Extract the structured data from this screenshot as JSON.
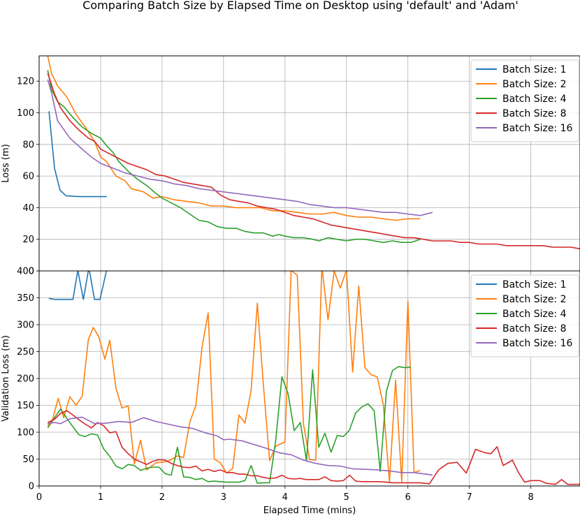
{
  "figure": {
    "title": "Comparing Batch Size by Elapsed Time on Desktop using 'default' and 'Adam'"
  },
  "colors": {
    "Batch Size: 1": "#1f77b4",
    "Batch Size: 2": "#ff7f0e",
    "Batch Size: 4": "#2ca02c",
    "Batch Size: 8": "#d62728",
    "Batch Size: 16": "#9467bd",
    "grid": "#b0b0b0"
  },
  "chart_data": [
    {
      "type": "line",
      "title": "Comparing Batch Size by Elapsed Time on Desktop using 'default' and 'Adam'",
      "xlabel": "",
      "ylabel": "Loss (m)",
      "xlim": [
        0,
        8.8
      ],
      "ylim": [
        0,
        136
      ],
      "xticks": [
        0,
        1,
        2,
        3,
        4,
        5,
        6,
        7,
        8
      ],
      "yticks": [
        0,
        20,
        40,
        60,
        80,
        100,
        120
      ],
      "grid": true,
      "legend_position": "top-right",
      "series": [
        {
          "name": "Batch Size: 1",
          "x": [
            0.16,
            0.25,
            0.34,
            0.44,
            0.55,
            0.66,
            0.77,
            0.88,
            0.99,
            1.1
          ],
          "y": [
            101,
            65,
            51,
            47.5,
            47.2,
            47,
            47,
            47,
            47,
            47
          ]
        },
        {
          "name": "Batch Size: 2",
          "x": [
            0.14,
            0.2,
            0.3,
            0.45,
            0.6,
            0.75,
            0.9,
            1.0,
            1.1,
            1.25,
            1.4,
            1.5,
            1.7,
            1.85,
            2.0,
            2.2,
            2.4,
            2.6,
            2.8,
            3.0,
            3.2,
            3.4,
            3.6,
            3.8,
            4.0,
            4.2,
            4.4,
            4.6,
            4.8,
            5.0,
            5.2,
            5.4,
            5.6,
            5.8,
            6.0,
            6.2
          ],
          "y": [
            136,
            125,
            117,
            110,
            99,
            91,
            82,
            72,
            69,
            60,
            57,
            52,
            50,
            46,
            47,
            45,
            44,
            43,
            41,
            41,
            40,
            40,
            40,
            38,
            38,
            37,
            36,
            36,
            37,
            35,
            34,
            34,
            33,
            32,
            33,
            33
          ]
        },
        {
          "name": "Batch Size: 4",
          "x": [
            0.14,
            0.2,
            0.3,
            0.4,
            0.55,
            0.7,
            0.85,
            1.0,
            1.1,
            1.2,
            1.3,
            1.45,
            1.6,
            1.75,
            1.9,
            2.0,
            2.15,
            2.3,
            2.45,
            2.6,
            2.75,
            2.9,
            3.05,
            3.2,
            3.35,
            3.5,
            3.65,
            3.8,
            3.9,
            4.0,
            4.15,
            4.3,
            4.45,
            4.55,
            4.7,
            4.85,
            5.0,
            5.15,
            5.3,
            5.45,
            5.6,
            5.75,
            5.9,
            6.05,
            6.2
          ],
          "y": [
            127,
            115,
            107,
            104,
            97,
            91,
            87,
            84,
            79,
            75,
            69,
            63,
            58,
            54,
            49,
            46,
            43,
            40,
            36,
            32,
            31,
            28,
            27,
            27,
            25,
            24,
            24,
            22,
            23,
            22,
            21,
            21,
            20,
            19,
            21,
            20,
            19,
            20,
            20,
            19,
            18,
            19,
            18,
            18,
            20
          ]
        },
        {
          "name": "Batch Size: 8",
          "x": [
            0.14,
            0.25,
            0.35,
            0.5,
            0.65,
            0.8,
            0.9,
            1.0,
            1.15,
            1.3,
            1.45,
            1.6,
            1.75,
            1.9,
            2.05,
            2.2,
            2.35,
            2.5,
            2.65,
            2.8,
            2.95,
            3.1,
            3.25,
            3.4,
            3.55,
            3.7,
            3.85,
            4.0,
            4.15,
            4.3,
            4.45,
            4.6,
            4.75,
            4.9,
            5.05,
            5.2,
            5.35,
            5.5,
            5.65,
            5.8,
            5.95,
            6.1,
            6.25,
            6.4,
            6.55,
            6.7,
            6.85,
            7.0,
            7.15,
            7.3,
            7.45,
            7.6,
            7.75,
            7.9,
            8.05,
            8.2,
            8.35,
            8.5,
            8.65,
            8.8
          ],
          "y": [
            125,
            112,
            103,
            95,
            89,
            84,
            82,
            77,
            74,
            71,
            68,
            66,
            64,
            61,
            60,
            58,
            56,
            55,
            54,
            53,
            48,
            45,
            44,
            43,
            41,
            40,
            39,
            37,
            35,
            34,
            33,
            31,
            29,
            28,
            27,
            26,
            25,
            24,
            23,
            22,
            21,
            21,
            20,
            19,
            19,
            19,
            18,
            18,
            17,
            17,
            17,
            16,
            16,
            16,
            16,
            16,
            15,
            15,
            15,
            14
          ]
        },
        {
          "name": "Batch Size: 16",
          "x": [
            0.14,
            0.2,
            0.3,
            0.5,
            0.7,
            0.85,
            1.0,
            1.2,
            1.4,
            1.6,
            1.8,
            2.0,
            2.2,
            2.4,
            2.6,
            2.8,
            3.0,
            3.2,
            3.4,
            3.6,
            3.8,
            4.0,
            4.2,
            4.4,
            4.6,
            4.8,
            5.0,
            5.2,
            5.4,
            5.6,
            5.8,
            6.0,
            6.2,
            6.4
          ],
          "y": [
            121,
            113,
            95,
            84,
            77,
            72,
            68,
            65,
            62,
            60,
            58,
            57,
            55,
            54,
            52,
            51,
            50,
            49,
            48,
            47,
            46,
            45,
            44,
            42,
            41,
            40,
            40,
            39,
            38,
            37,
            37,
            36,
            35,
            37
          ]
        }
      ]
    },
    {
      "type": "line",
      "title": "",
      "xlabel": "Elapsed Time (mins)",
      "ylabel": "Validation Loss (m)",
      "xlim": [
        0,
        8.8
      ],
      "ylim": [
        0,
        400
      ],
      "xticks": [
        0,
        1,
        2,
        3,
        4,
        5,
        6,
        7,
        8
      ],
      "yticks": [
        0,
        50,
        100,
        150,
        200,
        250,
        300,
        350,
        400
      ],
      "grid": true,
      "legend_position": "top-right",
      "series": [
        {
          "name": "Batch Size: 1",
          "x": [
            0.16,
            0.25,
            0.35,
            0.45,
            0.55,
            0.63,
            0.72,
            0.81,
            0.9,
            0.99,
            1.1
          ],
          "y": [
            349,
            347,
            347,
            347,
            347,
            401,
            347,
            406,
            347,
            347,
            403
          ]
        },
        {
          "name": "Batch Size: 2",
          "x": [
            0.14,
            0.22,
            0.31,
            0.4,
            0.5,
            0.6,
            0.7,
            0.8,
            0.88,
            0.97,
            1.07,
            1.15,
            1.25,
            1.35,
            1.45,
            1.55,
            1.65,
            1.75,
            1.9,
            2.05,
            2.15,
            2.25,
            2.35,
            2.45,
            2.55,
            2.65,
            2.75,
            2.85,
            2.95,
            3.05,
            3.15,
            3.25,
            3.35,
            3.45,
            3.55,
            3.65,
            3.75,
            3.85,
            4.0,
            4.1,
            4.2,
            4.3,
            4.4,
            4.5,
            4.6,
            4.7,
            4.8,
            4.9,
            5.0,
            5.1,
            5.2,
            5.3,
            5.4,
            5.5,
            5.6,
            5.7,
            5.8,
            5.9,
            6.0,
            6.1,
            6.2
          ],
          "y": [
            112,
            124,
            163,
            127,
            166,
            150,
            167,
            272,
            295,
            278,
            236,
            271,
            182,
            145,
            149,
            41,
            85,
            30,
            43,
            45,
            49,
            56,
            53,
            118,
            150,
            258,
            322,
            50,
            43,
            24,
            33,
            132,
            117,
            178,
            340,
            187,
            47,
            74,
            82,
            401,
            392,
            116,
            49,
            48,
            408,
            309,
            400,
            368,
            402,
            212,
            372,
            220,
            207,
            203,
            152,
            7,
            197,
            8,
            344,
            25,
            29
          ]
        },
        {
          "name": "Batch Size: 4",
          "x": [
            0.14,
            0.25,
            0.35,
            0.45,
            0.55,
            0.65,
            0.75,
            0.85,
            0.95,
            1.05,
            1.15,
            1.25,
            1.35,
            1.45,
            1.55,
            1.65,
            1.75,
            1.85,
            1.95,
            2.05,
            2.15,
            2.25,
            2.35,
            2.45,
            2.55,
            2.65,
            2.75,
            2.85,
            2.95,
            3.05,
            3.15,
            3.25,
            3.35,
            3.45,
            3.55,
            3.65,
            3.75,
            3.85,
            3.95,
            4.05,
            4.15,
            4.25,
            4.35,
            4.45,
            4.55,
            4.65,
            4.75,
            4.85,
            4.95,
            5.05,
            5.15,
            5.25,
            5.35,
            5.45,
            5.55,
            5.65,
            5.75,
            5.85,
            5.95,
            6.05
          ],
          "y": [
            108,
            127,
            143,
            126,
            110,
            95,
            92,
            97,
            95,
            69,
            55,
            37,
            32,
            40,
            38,
            29,
            33,
            35,
            35,
            23,
            20,
            72,
            17,
            16,
            12,
            14,
            8,
            9,
            8,
            7,
            7,
            7,
            10,
            38,
            5,
            6,
            6,
            85,
            203,
            172,
            103,
            118,
            47,
            216,
            72,
            98,
            63,
            94,
            92,
            104,
            136,
            147,
            153,
            140,
            27,
            176,
            215,
            222,
            220,
            221
          ]
        },
        {
          "name": "Batch Size: 8",
          "x": [
            0.14,
            0.25,
            0.35,
            0.45,
            0.55,
            0.65,
            0.75,
            0.85,
            0.95,
            1.05,
            1.15,
            1.25,
            1.35,
            1.45,
            1.55,
            1.65,
            1.75,
            1.85,
            1.95,
            2.05,
            2.15,
            2.25,
            2.35,
            2.45,
            2.55,
            2.65,
            2.75,
            2.85,
            2.95,
            3.05,
            3.15,
            3.25,
            3.35,
            3.45,
            3.55,
            3.65,
            3.75,
            3.85,
            3.95,
            4.05,
            4.15,
            4.25,
            4.35,
            4.45,
            4.55,
            4.65,
            4.75,
            4.85,
            4.95,
            5.05,
            5.15,
            5.25,
            5.35,
            5.45,
            5.55,
            5.65,
            5.75,
            5.85,
            5.95,
            6.05,
            6.2,
            6.35,
            6.5,
            6.65,
            6.8,
            6.95,
            7.1,
            7.25,
            7.35,
            7.45,
            7.55,
            7.7,
            7.8,
            7.9,
            8.0,
            8.15,
            8.25,
            8.4,
            8.5,
            8.6,
            8.75,
            8.8
          ],
          "y": [
            118,
            124,
            135,
            140,
            132,
            123,
            115,
            108,
            118,
            112,
            99,
            101,
            72,
            60,
            50,
            45,
            40,
            46,
            49,
            48,
            42,
            38,
            35,
            34,
            37,
            28,
            31,
            27,
            30,
            25,
            25,
            22,
            22,
            19,
            19,
            16,
            14,
            15,
            20,
            14,
            13,
            14,
            12,
            12,
            12,
            17,
            10,
            9,
            10,
            20,
            9,
            8,
            8,
            8,
            8,
            7,
            6,
            6,
            6,
            6,
            6,
            4,
            30,
            42,
            44,
            24,
            68,
            62,
            60,
            73,
            38,
            48,
            25,
            7,
            10,
            10,
            5,
            3,
            12,
            3,
            3,
            3
          ]
        },
        {
          "name": "Batch Size: 16",
          "x": [
            0.14,
            0.25,
            0.35,
            0.5,
            0.7,
            0.9,
            1.1,
            1.3,
            1.5,
            1.7,
            1.9,
            2.1,
            2.3,
            2.5,
            2.7,
            2.9,
            3.0,
            3.1,
            3.3,
            3.5,
            3.7,
            3.9,
            4.1,
            4.3,
            4.5,
            4.7,
            4.9,
            5.1,
            5.3,
            5.5,
            5.7,
            5.9,
            6.1,
            6.3,
            6.4
          ],
          "y": [
            116,
            118,
            116,
            125,
            128,
            116,
            117,
            120,
            118,
            127,
            120,
            115,
            110,
            107,
            99,
            93,
            86,
            87,
            84,
            77,
            70,
            62,
            58,
            48,
            42,
            38,
            37,
            32,
            31,
            30,
            28,
            25,
            25,
            22,
            20
          ]
        }
      ]
    }
  ]
}
